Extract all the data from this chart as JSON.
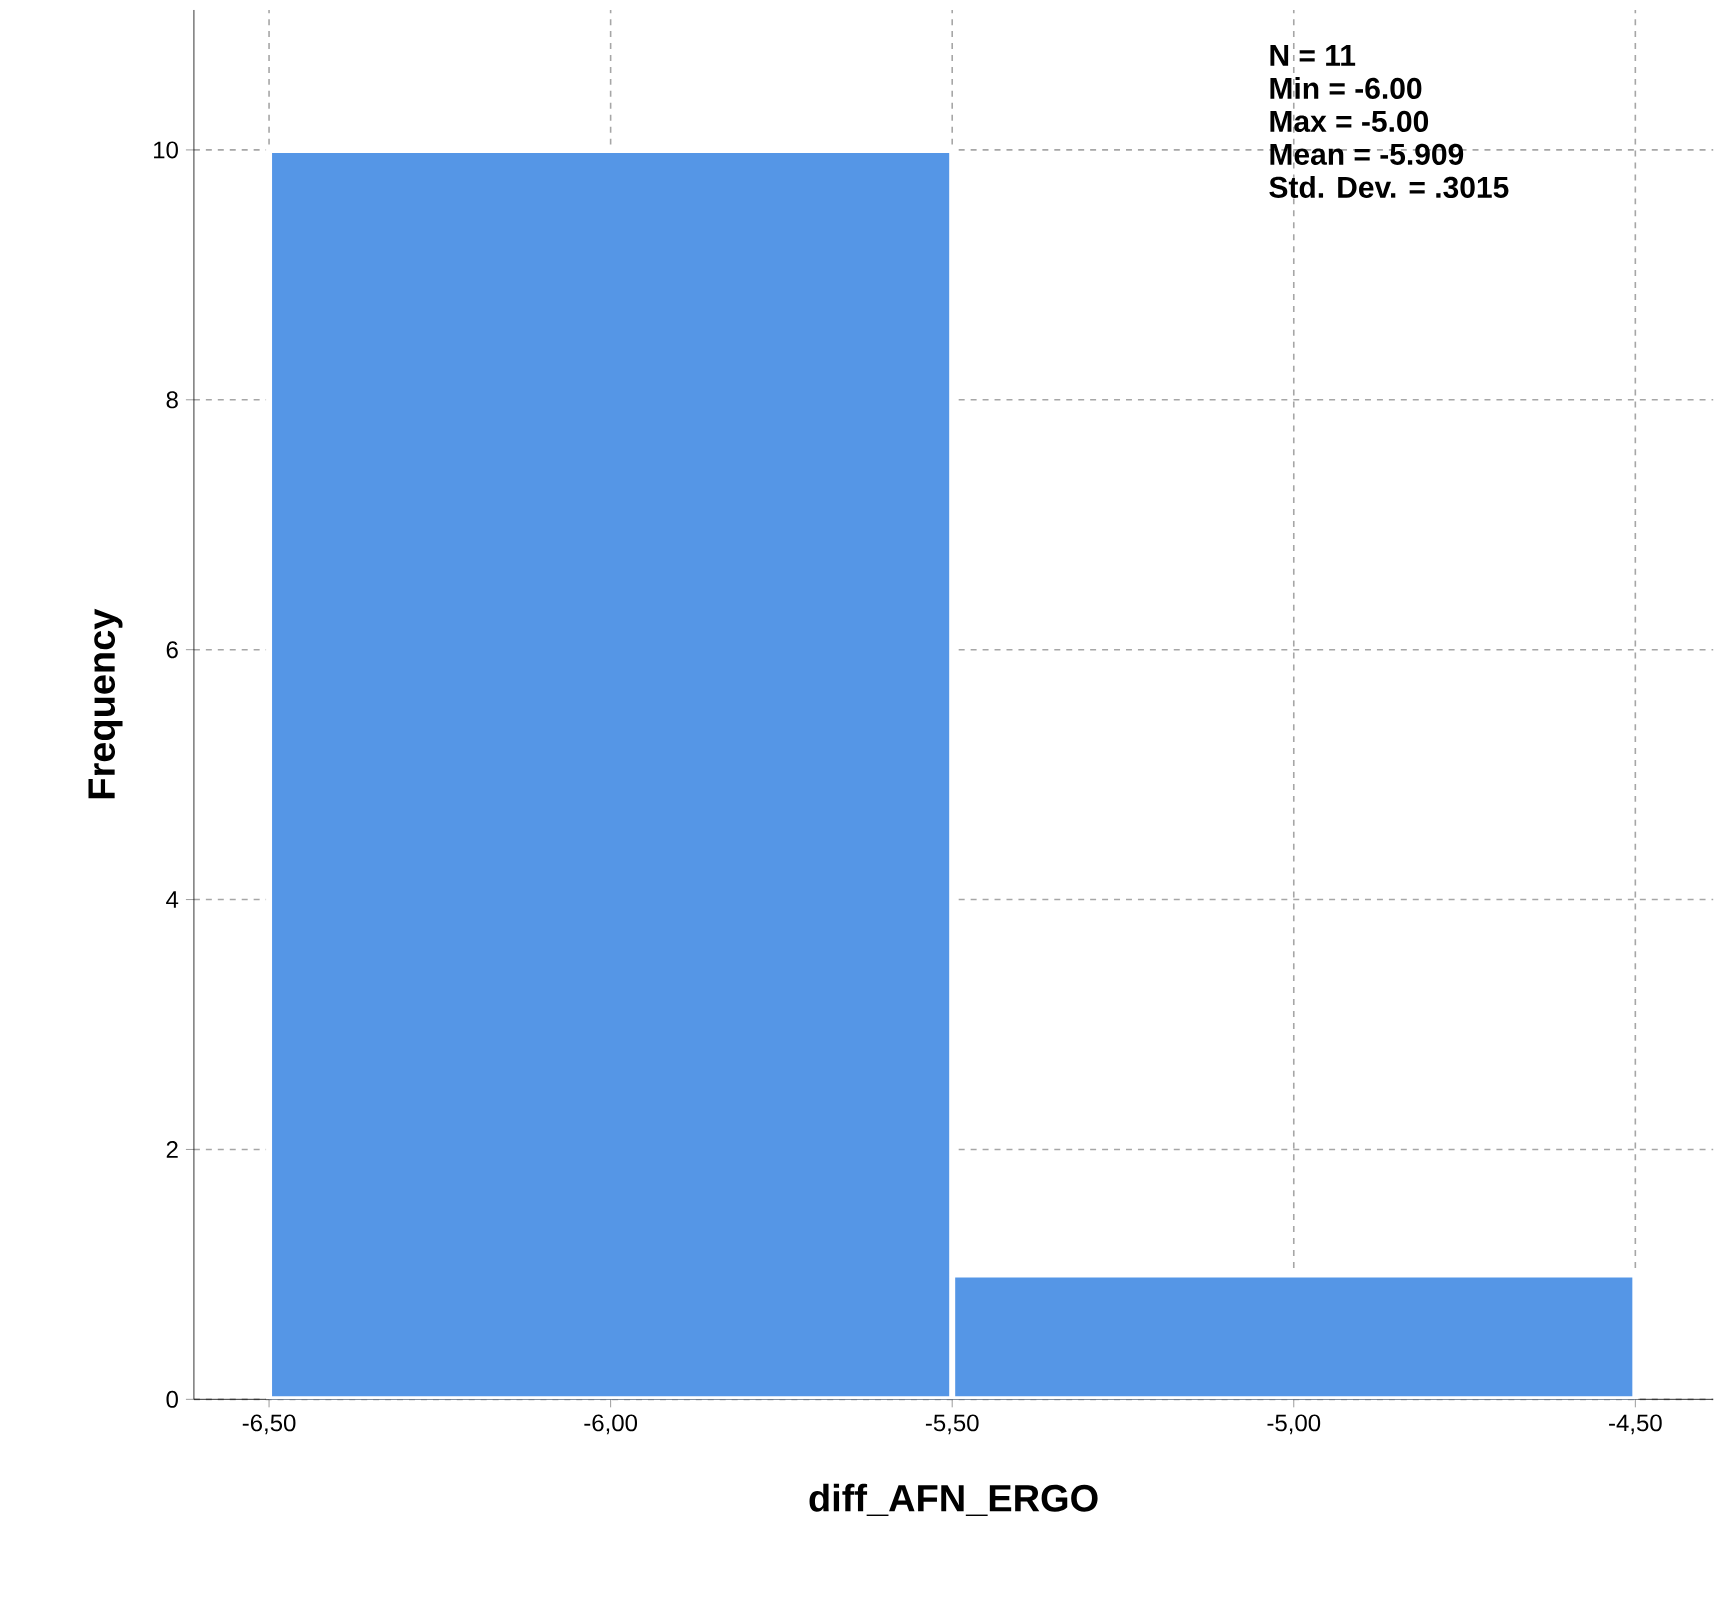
{
  "chart_data": {
    "type": "histogram",
    "xlabel": "diff_AFN_ERGO",
    "ylabel": "Frequency",
    "bins": [
      -6.5,
      -5.5,
      -4.5
    ],
    "values": [
      10,
      1
    ],
    "color": "#5596e6",
    "xlim": [
      -6.61,
      -4.386
    ],
    "ylim": [
      0,
      11.12
    ],
    "xticks": [
      {
        "value": -6.5,
        "label": "-6,50"
      },
      {
        "value": -6.0,
        "label": "-6,00"
      },
      {
        "value": -5.5,
        "label": "-5,50"
      },
      {
        "value": -5.0,
        "label": "-5,00"
      },
      {
        "value": -4.5,
        "label": "-4,50"
      }
    ],
    "yticks": [
      0,
      2,
      4,
      6,
      8,
      10
    ],
    "grid": true,
    "annotations": [
      "N = 11",
      "Min = -6.00",
      "Max = -5.00",
      "Mean = -5.909",
      "Std. Dev. = .3015"
    ]
  }
}
